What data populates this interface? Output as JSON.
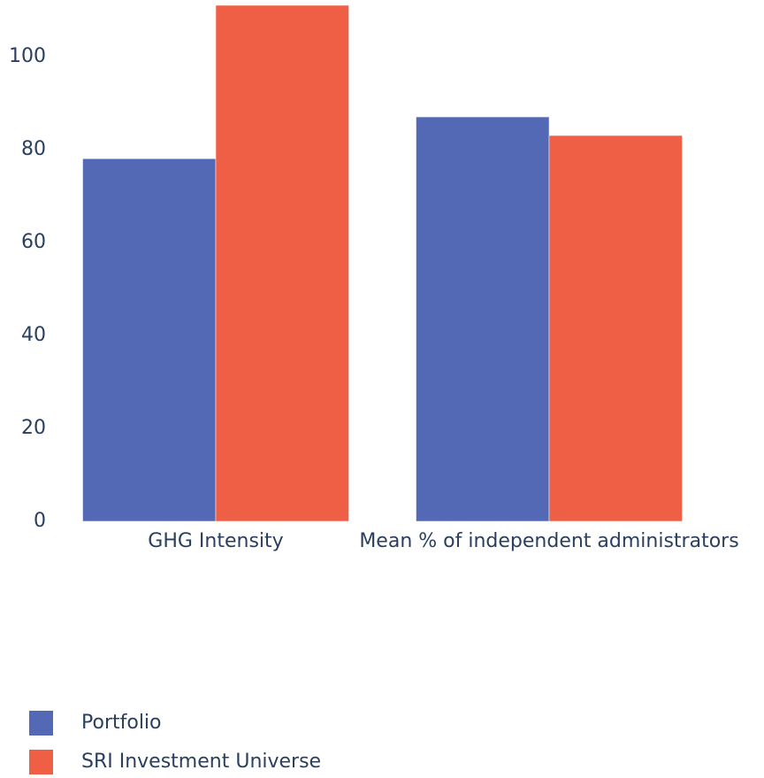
{
  "chart_data": {
    "type": "bar",
    "categories": [
      "GHG Intensity",
      "Mean % of independent administrators"
    ],
    "series": [
      {
        "name": "Portfolio",
        "color": "#5469b5",
        "values": [
          78,
          87
        ]
      },
      {
        "name": "SRI Investment Universe",
        "color": "#ef5f45",
        "values": [
          111,
          83
        ]
      }
    ],
    "ylim": [
      0,
      111
    ],
    "yticks": [
      0,
      20,
      40,
      60,
      80,
      100
    ],
    "grid": false,
    "legend": "bottom-left"
  }
}
